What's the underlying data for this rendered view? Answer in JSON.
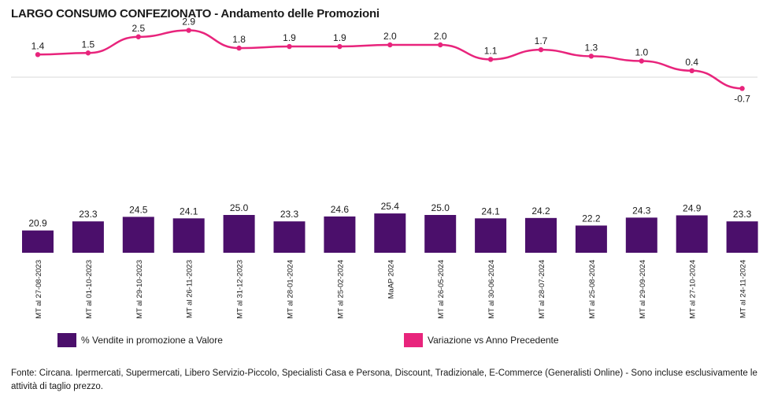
{
  "title": "LARGO CONSUMO CONFEZIONATO - Andamento delle Promozioni",
  "footer": "Fonte: Circana. Ipermercati, Supermercati, Libero Servizio-Piccolo, Specialisti Casa e Persona, Discount, Tradizionale, E-Commerce (Generalisti Online) - Sono incluse esclusivamente le attività di taglio prezzo.",
  "colors": {
    "bar": "#4b0f6b",
    "line": "#e8247c",
    "zero_line": "#d9d9d9"
  },
  "legend": {
    "bars": "% Vendite in promozione a Valore",
    "line": "Variazione vs Anno Precedente"
  },
  "chart_data": {
    "type": "bar+line",
    "categories": [
      "MT al 27-08-2023",
      "MT al 01-10-2023",
      "MT al 29-10-2023",
      "MT al 26-11-2023",
      "MT al 31-12-2023",
      "MT al 28-01-2024",
      "MT al 25-02-2024",
      "MaAP 2024",
      "MT al 26-05-2024",
      "MT al 30-06-2024",
      "MT al 28-07-2024",
      "MT al 25-08-2024",
      "MT al 29-09-2024",
      "MT al 27-10-2024",
      "MT al 24-11-2024"
    ],
    "series": [
      {
        "name": "% Vendite in promozione a Valore",
        "type": "bar",
        "values": [
          20.9,
          23.3,
          24.5,
          24.1,
          25.0,
          23.3,
          24.6,
          25.4,
          25.0,
          24.1,
          24.2,
          22.2,
          24.3,
          24.9,
          23.3
        ],
        "labels": [
          "20.9",
          "23.3",
          "24.5",
          "24.1",
          "25.0",
          "23.3",
          "24.6",
          "25.4",
          "25.0",
          "24.1",
          "24.2",
          "22.2",
          "24.3",
          "24.9",
          "23.3"
        ]
      },
      {
        "name": "Variazione vs Anno Precedente",
        "type": "line",
        "values": [
          1.4,
          1.5,
          2.5,
          2.9,
          1.8,
          1.9,
          1.9,
          2.0,
          2.0,
          1.1,
          1.7,
          1.3,
          1.0,
          0.4,
          -0.7
        ],
        "labels": [
          "1.4",
          "1.5",
          "2.5",
          "2.9",
          "1.8",
          "1.9",
          "1.9",
          "2.0",
          "2.0",
          "1.1",
          "1.7",
          "1.3",
          "1.0",
          "0.4",
          "-0.7"
        ]
      }
    ],
    "legend_position": "bottom",
    "grid": false
  }
}
